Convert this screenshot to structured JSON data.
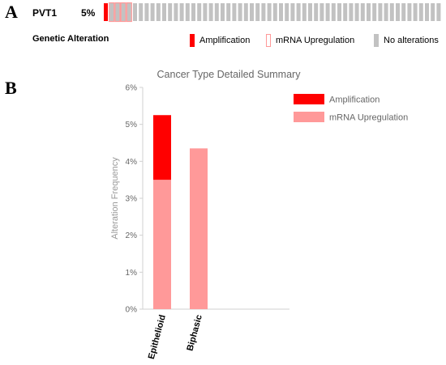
{
  "panel_a": {
    "letter": "A",
    "gene": "PVT1",
    "percent": "5%",
    "row_label": "Genetic Alteration",
    "samples": {
      "total": 58,
      "amplification": 1,
      "mrna_upregulation": 4
    },
    "legend": [
      {
        "label": "Amplification",
        "color": "#ff0000",
        "style": "filled"
      },
      {
        "label": "mRNA Upregulation",
        "color": "#ff9999",
        "style": "outline"
      },
      {
        "label": "No alterations",
        "color": "#c2c2c2",
        "style": "filled"
      }
    ]
  },
  "panel_b": {
    "letter": "B"
  },
  "chart_data": {
    "type": "bar",
    "stacked": true,
    "title": "Cancer Type Detailed Summary",
    "xlabel": "",
    "ylabel": "Alteration Frequency",
    "categories": [
      "Epithelioid",
      "Biphasic"
    ],
    "series": [
      {
        "name": "mRNA Upregulation",
        "color": "#ff9999",
        "values": [
          3.5,
          4.35
        ]
      },
      {
        "name": "Amplification",
        "color": "#ff0000",
        "values": [
          1.75,
          0
        ]
      }
    ],
    "ylim": [
      0,
      6
    ],
    "yticks": [
      "0%",
      "1%",
      "2%",
      "3%",
      "4%",
      "5%",
      "6%"
    ],
    "legend_position": "top-right",
    "grid": false
  }
}
